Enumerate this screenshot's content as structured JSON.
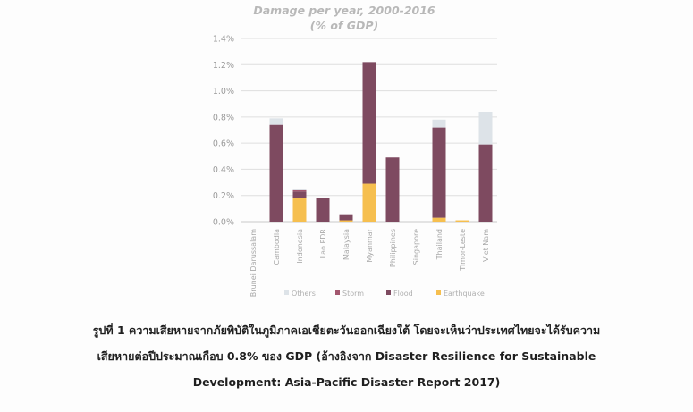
{
  "chart_data": {
    "type": "bar",
    "stacked": true,
    "title": "Damage per year, 2000-2016",
    "subtitle": "(% of GDP)",
    "y_tick_labels": [
      "0.0%",
      "0.2%",
      "0.4%",
      "0.6%",
      "0.8%",
      "1.0%",
      "1.2%",
      "1.4%"
    ],
    "ylim": [
      0,
      1.4
    ],
    "grid": true,
    "legend_position": "bottom",
    "categories": [
      "Brunei Darussalam",
      "Cambodia",
      "Indonesia",
      "Lao PDR",
      "Malaysia",
      "Myanmar",
      "Philippines",
      "Singapore",
      "Thailand",
      "Timor-Leste",
      "Viet Nam"
    ],
    "series": [
      {
        "name": "Earthquake",
        "color": "#f6bf4f",
        "values": [
          0,
          0,
          0.18,
          0,
          0.01,
          0.29,
          0,
          0,
          0.03,
          0.01,
          0
        ]
      },
      {
        "name": "Flood",
        "color": "#7e4a60",
        "values": [
          0,
          0.74,
          0.05,
          0.18,
          0.04,
          0.93,
          0.49,
          0,
          0.69,
          0,
          0.59
        ]
      },
      {
        "name": "Storm",
        "color": "#a3576e",
        "values": [
          0,
          0,
          0.01,
          0,
          0,
          0,
          0,
          0,
          0,
          0,
          0
        ]
      },
      {
        "name": "Others",
        "color": "#dde3e8",
        "values": [
          0,
          0.05,
          0.01,
          0,
          0,
          0,
          0,
          0,
          0.06,
          0,
          0.25
        ]
      }
    ],
    "legend_order": [
      "Others",
      "Storm",
      "Flood",
      "Earthquake"
    ]
  },
  "caption": {
    "line1": "รูปที่ 1 ความเสียหายจากภัยพิบัติในภูมิภาคเอเชียตะวันออกเฉียงใต้ โดยจะเห็นว่าประเทศไทยจะได้รับความ",
    "line2": "เสียหายต่อปีประมาณเกือบ 0.8% ของ GDP (อ้างอิงจาก Disaster Resilience for Sustainable",
    "line3": "Development: Asia-Pacific Disaster Report 2017)"
  }
}
